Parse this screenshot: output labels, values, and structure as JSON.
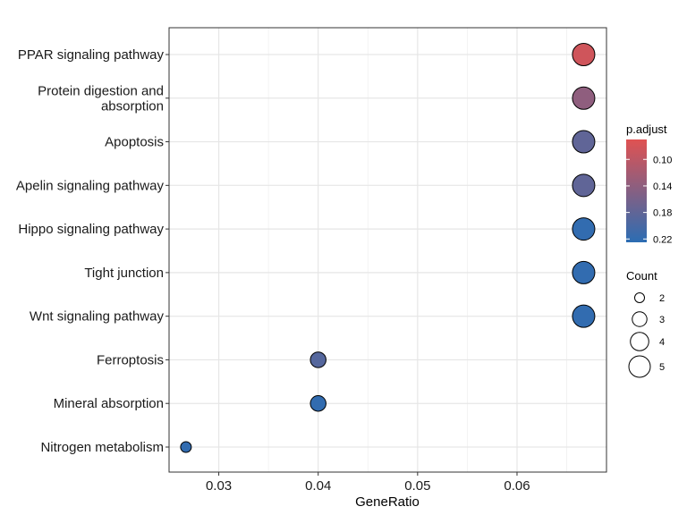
{
  "chart_data": {
    "type": "scatter",
    "title": "",
    "xlabel": "GeneRatio",
    "ylabel": "",
    "xlim": [
      0.025,
      0.069
    ],
    "x_ticks": [
      "0.03",
      "0.04",
      "0.05",
      "0.06"
    ],
    "x_tick_values": [
      0.03,
      0.04,
      0.05,
      0.06
    ],
    "grid": true,
    "points": [
      {
        "term": "PPAR signaling pathway",
        "term_lines": [
          "PPAR signaling pathway"
        ],
        "gene_ratio": 0.0667,
        "count": 5,
        "p_adjust": 0.085
      },
      {
        "term": "Protein digestion and absorption",
        "term_lines": [
          "Protein digestion and",
          "absorption"
        ],
        "gene_ratio": 0.0667,
        "count": 5,
        "p_adjust": 0.14
      },
      {
        "term": "Apoptosis",
        "term_lines": [
          "Apoptosis"
        ],
        "gene_ratio": 0.0667,
        "count": 5,
        "p_adjust": 0.18
      },
      {
        "term": "Apelin signaling pathway",
        "term_lines": [
          "Apelin signaling pathway"
        ],
        "gene_ratio": 0.0667,
        "count": 5,
        "p_adjust": 0.18
      },
      {
        "term": "Hippo signaling pathway",
        "term_lines": [
          "Hippo signaling pathway"
        ],
        "gene_ratio": 0.0667,
        "count": 5,
        "p_adjust": 0.22
      },
      {
        "term": "Tight junction",
        "term_lines": [
          "Tight junction"
        ],
        "gene_ratio": 0.0667,
        "count": 5,
        "p_adjust": 0.22
      },
      {
        "term": "Wnt signaling pathway",
        "term_lines": [
          "Wnt signaling pathway"
        ],
        "gene_ratio": 0.0667,
        "count": 5,
        "p_adjust": 0.22
      },
      {
        "term": "Ferroptosis",
        "term_lines": [
          "Ferroptosis"
        ],
        "gene_ratio": 0.04,
        "count": 3,
        "p_adjust": 0.19
      },
      {
        "term": "Mineral absorption",
        "term_lines": [
          "Mineral absorption"
        ],
        "gene_ratio": 0.04,
        "count": 3,
        "p_adjust": 0.22
      },
      {
        "term": "Nitrogen metabolism",
        "term_lines": [
          "Nitrogen metabolism"
        ],
        "gene_ratio": 0.0267,
        "count": 2,
        "p_adjust": 0.22
      }
    ],
    "color_legend": {
      "title": "p.adjust",
      "min": 0.07,
      "max": 0.225,
      "low_color": "#e05252",
      "high_color": "#2c6db3",
      "ticks": [
        "0.10",
        "0.14",
        "0.18",
        "0.22"
      ],
      "tick_values": [
        0.1,
        0.14,
        0.18,
        0.22
      ]
    },
    "size_legend": {
      "title": "Count",
      "values": [
        "2",
        "3",
        "4",
        "5"
      ],
      "count_values": [
        2,
        3,
        4,
        5
      ]
    },
    "legend_position": "right"
  }
}
